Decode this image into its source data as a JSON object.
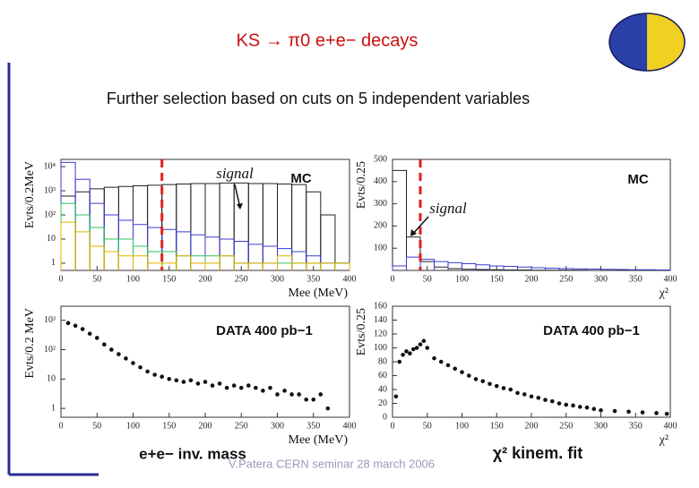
{
  "title": "KS → π0 e+e− decays",
  "subtitle": "Further selection based on cuts on 5 independent  variables",
  "mass_caption": "e+e− inv. mass",
  "fit_caption": "χ² kinem. fit",
  "footer": "V.Patera CERN seminar 28 march 2006",
  "chart_data": [
    {
      "type": "histogram",
      "ylabel": "Evts/0.2MeV",
      "xlabel": "Mee (MeV)",
      "annotations": [
        "signal",
        "MC"
      ],
      "log_y": true,
      "xlim": [
        0,
        400
      ],
      "ylim": [
        0.5,
        20000
      ],
      "xticks": [
        0,
        50,
        100,
        150,
        200,
        250,
        300,
        350,
        400
      ],
      "yticks": [
        1,
        10,
        {
          "value": 100,
          "label": "10²"
        },
        {
          "value": 1000,
          "label": "10³"
        },
        {
          "value": 10000,
          "label": "10⁴"
        }
      ],
      "cut_line": {
        "x": 140,
        "color": "#e02020"
      },
      "bins": [
        0,
        20,
        40,
        60,
        80,
        100,
        120,
        140,
        160,
        180,
        200,
        220,
        240,
        260,
        280,
        300,
        320,
        340,
        360,
        380,
        400
      ],
      "series": [
        {
          "color": "#222222",
          "values": [
            600,
            900,
            1200,
            1400,
            1500,
            1600,
            1700,
            1800,
            1900,
            2000,
            2000,
            2100,
            2100,
            2000,
            2000,
            1900,
            1800,
            900,
            100,
            1
          ]
        },
        {
          "color": "#3a3ad0",
          "values": [
            15000,
            3000,
            300,
            100,
            60,
            40,
            30,
            25,
            20,
            15,
            12,
            10,
            8,
            6,
            5,
            4,
            3,
            2,
            1,
            1
          ]
        },
        {
          "color": "#30c060",
          "values": [
            300,
            100,
            30,
            10,
            10,
            5,
            3,
            3,
            2,
            2,
            2,
            2,
            1,
            1,
            1,
            1,
            1,
            1,
            1,
            1
          ]
        },
        {
          "color": "#e0b000",
          "values": [
            50,
            20,
            5,
            3,
            2,
            2,
            1,
            1,
            2,
            1,
            1,
            2,
            1,
            1,
            1,
            2,
            1,
            1,
            1,
            1
          ]
        }
      ]
    },
    {
      "type": "histogram",
      "ylabel": "Evts/0.25",
      "xlabel": "χ²",
      "annotations": [
        "MC",
        "signal"
      ],
      "log_y": false,
      "xlim": [
        0,
        400
      ],
      "ylim": [
        0,
        500
      ],
      "xticks": [
        0,
        50,
        100,
        150,
        200,
        250,
        300,
        350,
        400
      ],
      "yticks": [
        100,
        200,
        300,
        400,
        500
      ],
      "cut_line": {
        "x": 40,
        "color": "#e02020"
      },
      "bins": [
        0,
        20,
        40,
        60,
        80,
        100,
        120,
        140,
        160,
        180,
        200,
        220,
        240,
        260,
        280,
        300,
        320,
        340,
        360,
        380,
        400
      ],
      "series": [
        {
          "color": "#222222",
          "values": [
            450,
            150,
            40,
            15,
            8,
            5,
            4,
            3,
            2,
            2,
            1,
            1,
            1,
            1,
            0,
            0,
            0,
            0,
            0,
            0
          ]
        },
        {
          "color": "#3a3ad0",
          "values": [
            20,
            60,
            50,
            40,
            35,
            30,
            25,
            20,
            18,
            15,
            12,
            10,
            8,
            7,
            6,
            5,
            4,
            3,
            3,
            2
          ]
        }
      ]
    },
    {
      "type": "scatter",
      "ylabel": "Evts/0.2 MeV",
      "xlabel": "Mee (MeV)",
      "annotations": [
        "DATA 400 pb−1"
      ],
      "log_y": true,
      "xlim": [
        0,
        400
      ],
      "ylim": [
        0.5,
        3000
      ],
      "xticks": [
        0,
        50,
        100,
        150,
        200,
        250,
        300,
        350,
        400
      ],
      "yticks": [
        1,
        10,
        {
          "value": 100,
          "label": "10²"
        },
        {
          "value": 1000,
          "label": "10³"
        }
      ],
      "color": "#111111",
      "x": [
        10,
        20,
        30,
        40,
        50,
        60,
        70,
        80,
        90,
        100,
        110,
        120,
        130,
        140,
        150,
        160,
        170,
        180,
        190,
        200,
        210,
        220,
        230,
        240,
        250,
        260,
        270,
        280,
        290,
        300,
        310,
        320,
        330,
        340,
        350,
        360,
        370
      ],
      "values": [
        800,
        650,
        500,
        350,
        250,
        150,
        100,
        70,
        50,
        35,
        25,
        18,
        14,
        12,
        10,
        9,
        8,
        9,
        7,
        8,
        6,
        7,
        5,
        6,
        5,
        6,
        5,
        4,
        5,
        3,
        4,
        3,
        3,
        2,
        2,
        3,
        1
      ]
    },
    {
      "type": "scatter",
      "ylabel": "Evts/0.25",
      "xlabel": "χ²",
      "annotations": [
        "DATA 400 pb−1"
      ],
      "log_y": false,
      "xlim": [
        0,
        400
      ],
      "ylim": [
        0,
        160
      ],
      "xticks": [
        0,
        50,
        100,
        150,
        200,
        250,
        300,
        350,
        400
      ],
      "yticks": [
        0,
        20,
        40,
        60,
        80,
        100,
        120,
        140,
        160
      ],
      "color": "#111111",
      "x": [
        5,
        10,
        15,
        20,
        25,
        30,
        35,
        40,
        45,
        50,
        60,
        70,
        80,
        90,
        100,
        110,
        120,
        130,
        140,
        150,
        160,
        170,
        180,
        190,
        200,
        210,
        220,
        230,
        240,
        250,
        260,
        270,
        280,
        290,
        300,
        320,
        340,
        360,
        380,
        395
      ],
      "values": [
        30,
        80,
        90,
        95,
        92,
        98,
        100,
        105,
        110,
        100,
        85,
        80,
        75,
        70,
        65,
        60,
        55,
        52,
        48,
        45,
        42,
        40,
        35,
        33,
        30,
        28,
        25,
        23,
        20,
        18,
        17,
        15,
        14,
        12,
        10,
        9,
        8,
        7,
        6,
        5
      ]
    }
  ]
}
